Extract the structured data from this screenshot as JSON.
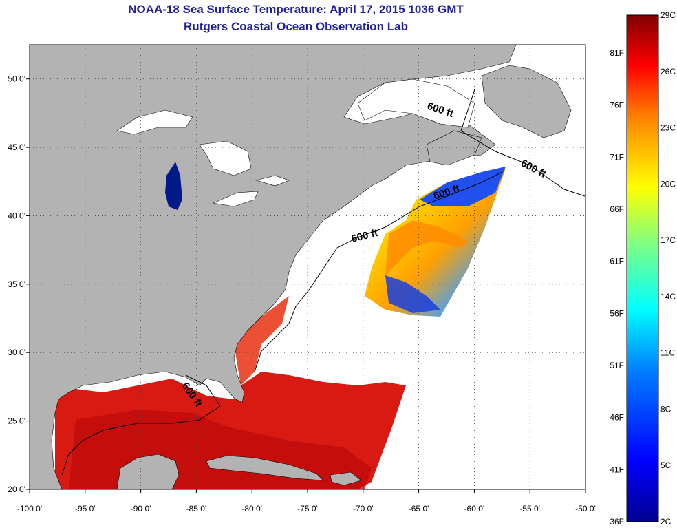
{
  "title": "NOAA-18 Sea Surface Temperature:  April 17, 2015 1036 GMT",
  "subtitle": "Rutgers Coastal Ocean Observation Lab",
  "map": {
    "lon_range": [
      -100,
      -50
    ],
    "lat_range": [
      20,
      52.5
    ],
    "lon_ticks": [
      -100,
      -95,
      -90,
      -85,
      -80,
      -75,
      -70,
      -65,
      -60,
      -55,
      -50
    ],
    "lon_labels": [
      "-100 0'",
      "-95 0'",
      "-90 0'",
      "-85 0'",
      "-80 0'",
      "-75 0'",
      "-70 0'",
      "-65 0'",
      "-60 0'",
      "-55 0'",
      "-50 0'"
    ],
    "lat_ticks": [
      20,
      25,
      30,
      35,
      40,
      45,
      50
    ],
    "lat_labels": [
      "20 0'",
      "25 0'",
      "30 0'",
      "35 0'",
      "40 0'",
      "45 0'",
      "50 0'"
    ],
    "grid": "dotted",
    "land_color": "#b3b3b3",
    "no_data_color": "#ffffff",
    "contour_labels": [
      "600 ft",
      "600 ft",
      "600 ft",
      "600 ft",
      "600 ft"
    ]
  },
  "colorbar": {
    "range_c": [
      2,
      29
    ],
    "celsius_labels": [
      "29C",
      "26C",
      "23C",
      "20C",
      "17C",
      "14C",
      "11C",
      "8C",
      "5C",
      "2C"
    ],
    "fahrenheit_labels": [
      "81F",
      "76F",
      "71F",
      "66F",
      "61F",
      "56F",
      "51F",
      "46F",
      "41F",
      "36F"
    ],
    "colors": [
      "#00008f",
      "#0000ff",
      "#0080ff",
      "#00ffff",
      "#80ff80",
      "#ffff00",
      "#ff8000",
      "#ff0000",
      "#800000"
    ]
  }
}
